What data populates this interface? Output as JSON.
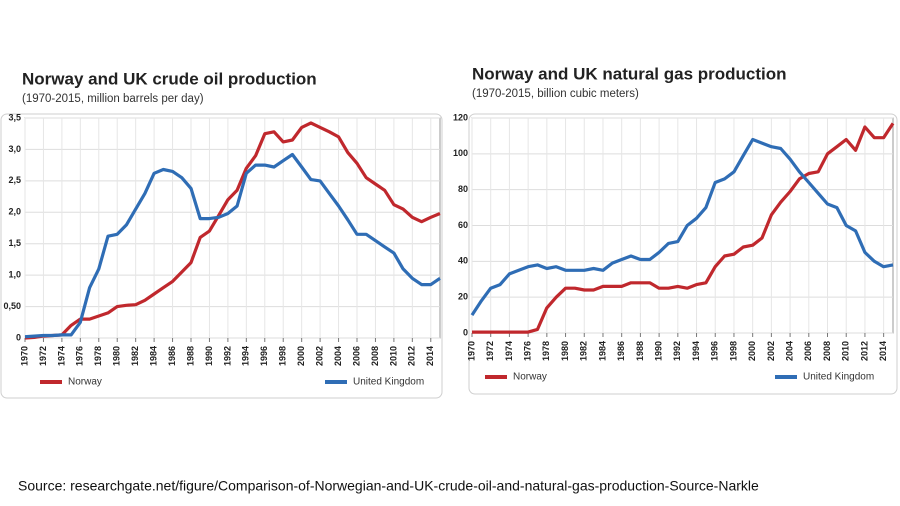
{
  "chart_data": [
    {
      "type": "line",
      "title": "Norway and UK crude oil production",
      "subtitle": "(1970-2015, million barrels per day)",
      "x": [
        1970,
        1971,
        1972,
        1973,
        1974,
        1975,
        1976,
        1977,
        1978,
        1979,
        1980,
        1981,
        1982,
        1983,
        1984,
        1985,
        1986,
        1987,
        1988,
        1989,
        1990,
        1991,
        1992,
        1993,
        1994,
        1995,
        1996,
        1997,
        1998,
        1999,
        2000,
        2001,
        2002,
        2003,
        2004,
        2005,
        2006,
        2007,
        2008,
        2009,
        2010,
        2011,
        2012,
        2013,
        2014,
        2015
      ],
      "xlim": [
        1970,
        2015
      ],
      "xticks": [
        1970,
        1972,
        1974,
        1976,
        1978,
        1980,
        1982,
        1984,
        1986,
        1988,
        1990,
        1992,
        1994,
        1996,
        1998,
        2000,
        2002,
        2004,
        2006,
        2008,
        2010,
        2012,
        2014
      ],
      "ylim": [
        0,
        3.5
      ],
      "yticks": [
        0,
        {
          "value": 0.5,
          "label": "0,50"
        },
        {
          "value": 1.0,
          "label": "1,0"
        },
        {
          "value": 1.5,
          "label": "1,5"
        },
        {
          "value": 2.0,
          "label": "2,0"
        },
        {
          "value": 2.5,
          "label": "2,5"
        },
        {
          "value": 3.0,
          "label": "3,0"
        },
        {
          "value": 3.5,
          "label": "3,5"
        }
      ],
      "grid": true,
      "series": [
        {
          "name": "Norway",
          "color": "#c0282d",
          "values": [
            0,
            0.01,
            0.03,
            0.04,
            0.05,
            0.2,
            0.3,
            0.3,
            0.35,
            0.4,
            0.5,
            0.52,
            0.53,
            0.6,
            0.7,
            0.8,
            0.9,
            1.05,
            1.2,
            1.6,
            1.7,
            1.95,
            2.2,
            2.35,
            2.7,
            2.9,
            3.25,
            3.28,
            3.12,
            3.15,
            3.35,
            3.42,
            3.35,
            3.28,
            3.2,
            2.95,
            2.78,
            2.55,
            2.45,
            2.35,
            2.12,
            2.05,
            1.92,
            1.85,
            1.92,
            1.98
          ]
        },
        {
          "name": "United Kingdom",
          "color": "#2f6db5",
          "values": [
            0.02,
            0.03,
            0.04,
            0.04,
            0.05,
            0.05,
            0.25,
            0.8,
            1.1,
            1.62,
            1.65,
            1.8,
            2.05,
            2.3,
            2.62,
            2.68,
            2.65,
            2.55,
            2.38,
            1.9,
            1.9,
            1.92,
            1.98,
            2.1,
            2.62,
            2.75,
            2.75,
            2.72,
            2.82,
            2.92,
            2.72,
            2.52,
            2.5,
            2.3,
            2.1,
            1.88,
            1.65,
            1.65,
            1.55,
            1.45,
            1.35,
            1.1,
            0.95,
            0.85,
            0.85,
            0.95
          ]
        }
      ]
    },
    {
      "type": "line",
      "title": "Norway and UK natural gas production",
      "subtitle": "(1970-2015, billion cubic meters)",
      "x": [
        1970,
        1971,
        1972,
        1973,
        1974,
        1975,
        1976,
        1977,
        1978,
        1979,
        1980,
        1981,
        1982,
        1983,
        1984,
        1985,
        1986,
        1987,
        1988,
        1989,
        1990,
        1991,
        1992,
        1993,
        1994,
        1995,
        1996,
        1997,
        1998,
        1999,
        2000,
        2001,
        2002,
        2003,
        2004,
        2005,
        2006,
        2007,
        2008,
        2009,
        2010,
        2011,
        2012,
        2013,
        2014,
        2015
      ],
      "xlim": [
        1970,
        2015
      ],
      "xticks": [
        1970,
        1972,
        1974,
        1976,
        1978,
        1980,
        1982,
        1984,
        1986,
        1988,
        1990,
        1992,
        1994,
        1996,
        1998,
        2000,
        2002,
        2004,
        2006,
        2008,
        2010,
        2012,
        2014
      ],
      "ylim": [
        0,
        120
      ],
      "yticks": [
        0,
        20,
        40,
        60,
        80,
        100,
        120
      ],
      "grid": true,
      "series": [
        {
          "name": "Norway",
          "color": "#c0282d",
          "values": [
            0.5,
            0.5,
            0.5,
            0.5,
            0.5,
            0.5,
            0.5,
            2,
            14,
            20,
            25,
            25,
            24,
            24,
            26,
            26,
            26,
            28,
            28,
            28,
            25,
            25,
            26,
            25,
            27,
            28,
            37,
            43,
            44,
            48,
            49,
            53,
            66,
            73,
            79,
            86,
            89,
            90,
            100,
            104,
            108,
            102,
            115,
            109,
            109,
            117
          ]
        },
        {
          "name": "United Kingdom",
          "color": "#2f6db5",
          "values": [
            10,
            18,
            25,
            27,
            33,
            35,
            37,
            38,
            36,
            37,
            35,
            35,
            35,
            36,
            35,
            39,
            41,
            43,
            41,
            41,
            45,
            50,
            51,
            60,
            64,
            70,
            84,
            86,
            90,
            99,
            108,
            106,
            104,
            103,
            97,
            90,
            84,
            78,
            72,
            70,
            60,
            57,
            45,
            40,
            37,
            38
          ]
        }
      ]
    }
  ],
  "source": "Source: researchgate.net/figure/Comparison-of-Norwegian-and-UK-crude-oil-and-natural-gas-production-Source-Narkle"
}
